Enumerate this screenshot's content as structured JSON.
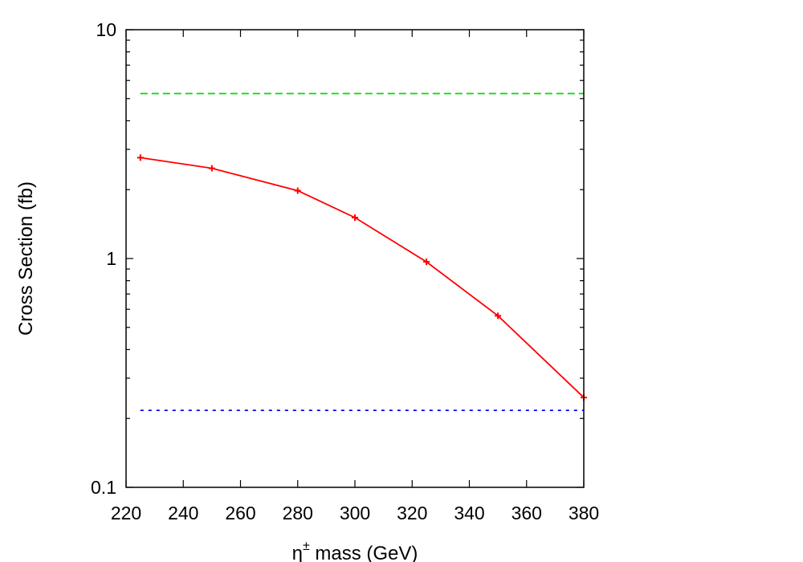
{
  "chart_data": {
    "type": "line",
    "title": "",
    "xlabel": "η",
    "xlabel_sup": "±",
    "xlabel_rest": " mass (GeV)",
    "ylabel": "Cross Section (fb)",
    "xlim": [
      220,
      380
    ],
    "ylim": [
      0.1,
      10
    ],
    "yscale": "log",
    "grid": false,
    "x_ticks": [
      "220",
      "240",
      "260",
      "280",
      "300",
      "320",
      "340",
      "360",
      "380"
    ],
    "y_ticks": [
      "0.1",
      "1",
      "10"
    ],
    "series": [
      {
        "style": "solid line with plus markers",
        "color": "#ff0000",
        "x": [
          225,
          250,
          280,
          300,
          325,
          350,
          380
        ],
        "y": [
          2.76,
          2.48,
          1.98,
          1.51,
          0.967,
          0.562,
          0.247
        ]
      },
      {
        "style": "dashed horizontal line",
        "color": "#00dd00",
        "x": [
          225,
          380
        ],
        "y": [
          5.26,
          5.26
        ]
      },
      {
        "style": "dotted horizontal line",
        "color": "#0000ff",
        "x": [
          225,
          380
        ],
        "y": [
          0.217,
          0.217
        ]
      }
    ]
  }
}
